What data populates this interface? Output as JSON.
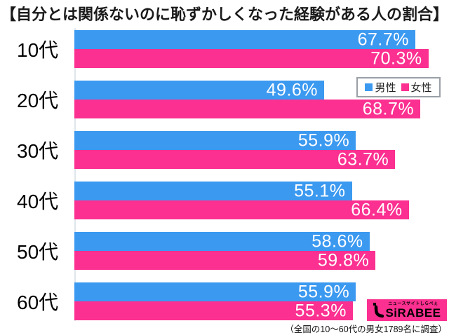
{
  "title": "【自分とは関係ないのに恥ずかしくなった経験がある人の割合】",
  "colors": {
    "male": "#3B99F0",
    "female": "#FB3090",
    "axis_line": "#dfe6ec",
    "legend_border": "#9aa0a6",
    "value_text": "#ffffff"
  },
  "legend": {
    "male_label": "男性",
    "female_label": "女性"
  },
  "chart_data": {
    "type": "bar",
    "orientation": "horizontal",
    "title": "【自分とは関係ないのに恥ずかしくなった経験がある人の割合】",
    "categories": [
      "10代",
      "20代",
      "30代",
      "40代",
      "50代",
      "60代"
    ],
    "series": [
      {
        "name": "男性",
        "color": "#3B99F0",
        "values": [
          67.7,
          49.6,
          55.9,
          55.1,
          58.6,
          55.9
        ]
      },
      {
        "name": "女性",
        "color": "#FB3090",
        "values": [
          70.3,
          68.7,
          63.7,
          66.4,
          59.8,
          55.3
        ]
      }
    ],
    "value_suffix": "%",
    "xlim": [
      0,
      73
    ],
    "grid": false,
    "legend_position": "upper-right",
    "value_labels": "inside-end"
  },
  "footer": {
    "logo_tagline": "ニュースサイトしらべぇ",
    "logo_name": "SiRABEE",
    "source_note": "（全国の10〜60代の男女1789名に調査）"
  }
}
